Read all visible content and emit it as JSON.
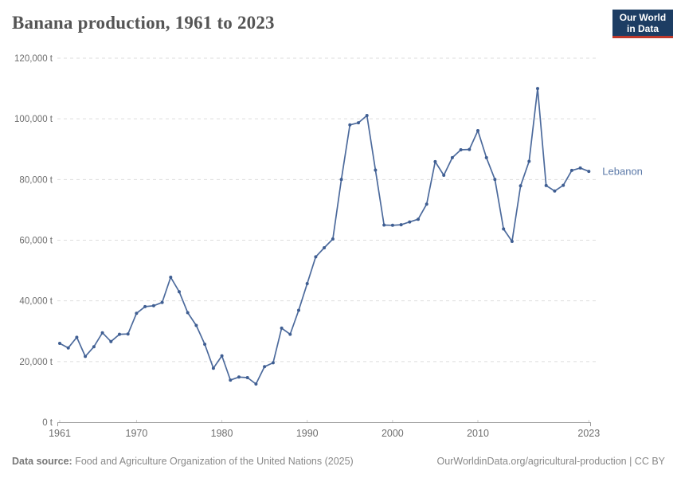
{
  "header": {
    "title": "Banana production, 1961 to 2023",
    "logo_line1": "Our World",
    "logo_line2": "in Data"
  },
  "footer": {
    "source_label": "Data source:",
    "source_text": " Food and Agriculture Organization of the United Nations (2025)",
    "link_text": "OurWorldinData.org/agricultural-production | CC BY"
  },
  "colors": {
    "line": "#4C6A9C",
    "marker": "#3F5E92",
    "series_label": "#5B79A8",
    "grid": "#DDDDDD",
    "axis": "#999999",
    "axis_tick": "#CCCCCC",
    "tick_text": "#6E6E6E",
    "title_text": "#555555",
    "logo_bg": "#1D3D63",
    "logo_accent": "#C0392B"
  },
  "chart_data": {
    "type": "line",
    "title": "Banana production, 1961 to 2023",
    "xlabel": "",
    "ylabel": "",
    "unit": "t",
    "xlim": [
      1961,
      2023
    ],
    "ylim": [
      0,
      120000
    ],
    "grid": "horizontal-dashed",
    "legend_position": "end-of-line",
    "x_ticks": [
      1961,
      1970,
      1980,
      1990,
      2000,
      2010,
      2023
    ],
    "y_ticks": {
      "values": [
        0,
        20000,
        40000,
        60000,
        80000,
        100000,
        120000
      ],
      "labels": [
        "0 t",
        "20,000 t",
        "40,000 t",
        "60,000 t",
        "80,000 t",
        "100,000 t",
        "120,000 t"
      ]
    },
    "series": [
      {
        "name": "Lebanon",
        "x": [
          1961,
          1962,
          1963,
          1964,
          1965,
          1966,
          1967,
          1968,
          1969,
          1970,
          1971,
          1972,
          1973,
          1974,
          1975,
          1976,
          1977,
          1978,
          1979,
          1980,
          1981,
          1982,
          1983,
          1984,
          1985,
          1986,
          1987,
          1988,
          1989,
          1990,
          1991,
          1992,
          1993,
          1994,
          1995,
          1996,
          1997,
          1998,
          1999,
          2000,
          2001,
          2002,
          2003,
          2004,
          2005,
          2006,
          2007,
          2008,
          2009,
          2010,
          2011,
          2012,
          2013,
          2014,
          2015,
          2016,
          2017,
          2018,
          2019,
          2020,
          2021,
          2022,
          2023
        ],
        "values": [
          26000,
          24500,
          28000,
          21700,
          24900,
          29500,
          26600,
          29000,
          29100,
          35900,
          38100,
          38400,
          39500,
          47800,
          43000,
          36100,
          31900,
          25700,
          17800,
          21900,
          13900,
          14900,
          14700,
          12600,
          18300,
          19600,
          31000,
          29000,
          36900,
          45700,
          54500,
          57500,
          60400,
          80000,
          98000,
          98700,
          101100,
          83100,
          65000,
          64900,
          65100,
          66000,
          66900,
          71900,
          85900,
          81400,
          87200,
          89800,
          89900,
          96100,
          87200,
          80000,
          63700,
          59600,
          77900,
          86000,
          110000,
          78000,
          76200,
          78100,
          83000,
          83800,
          82700
        ]
      }
    ]
  }
}
